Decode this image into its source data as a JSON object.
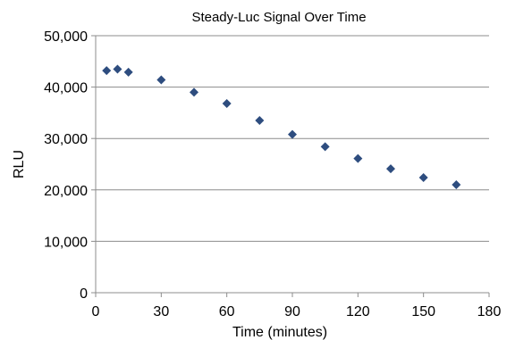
{
  "chart_data": {
    "type": "scatter",
    "title": "Steady-Luc Signal Over Time",
    "xlabel": "Time (minutes)",
    "ylabel": "RLU",
    "xlim": [
      0,
      180
    ],
    "ylim": [
      0,
      50000
    ],
    "x_ticks": [
      0,
      30,
      60,
      90,
      120,
      150,
      180
    ],
    "x_tick_labels": [
      "0",
      "30",
      "60",
      "90",
      "120",
      "150",
      "180"
    ],
    "y_ticks": [
      0,
      10000,
      20000,
      30000,
      40000,
      50000
    ],
    "y_tick_labels": [
      "0",
      "10,000",
      "20,000",
      "30,000",
      "40,000",
      "50,000"
    ],
    "grid": "horizontal",
    "legend": "none",
    "marker": "diamond",
    "marker_color": "#2E4D7F",
    "series": [
      {
        "points": [
          {
            "x": 5,
            "y": 43200
          },
          {
            "x": 10,
            "y": 43500
          },
          {
            "x": 15,
            "y": 42900
          },
          {
            "x": 30,
            "y": 41400
          },
          {
            "x": 45,
            "y": 39000
          },
          {
            "x": 60,
            "y": 36800
          },
          {
            "x": 75,
            "y": 33500
          },
          {
            "x": 90,
            "y": 30800
          },
          {
            "x": 105,
            "y": 28400
          },
          {
            "x": 120,
            "y": 26100
          },
          {
            "x": 135,
            "y": 24100
          },
          {
            "x": 150,
            "y": 22400
          },
          {
            "x": 165,
            "y": 21000
          }
        ]
      }
    ]
  }
}
